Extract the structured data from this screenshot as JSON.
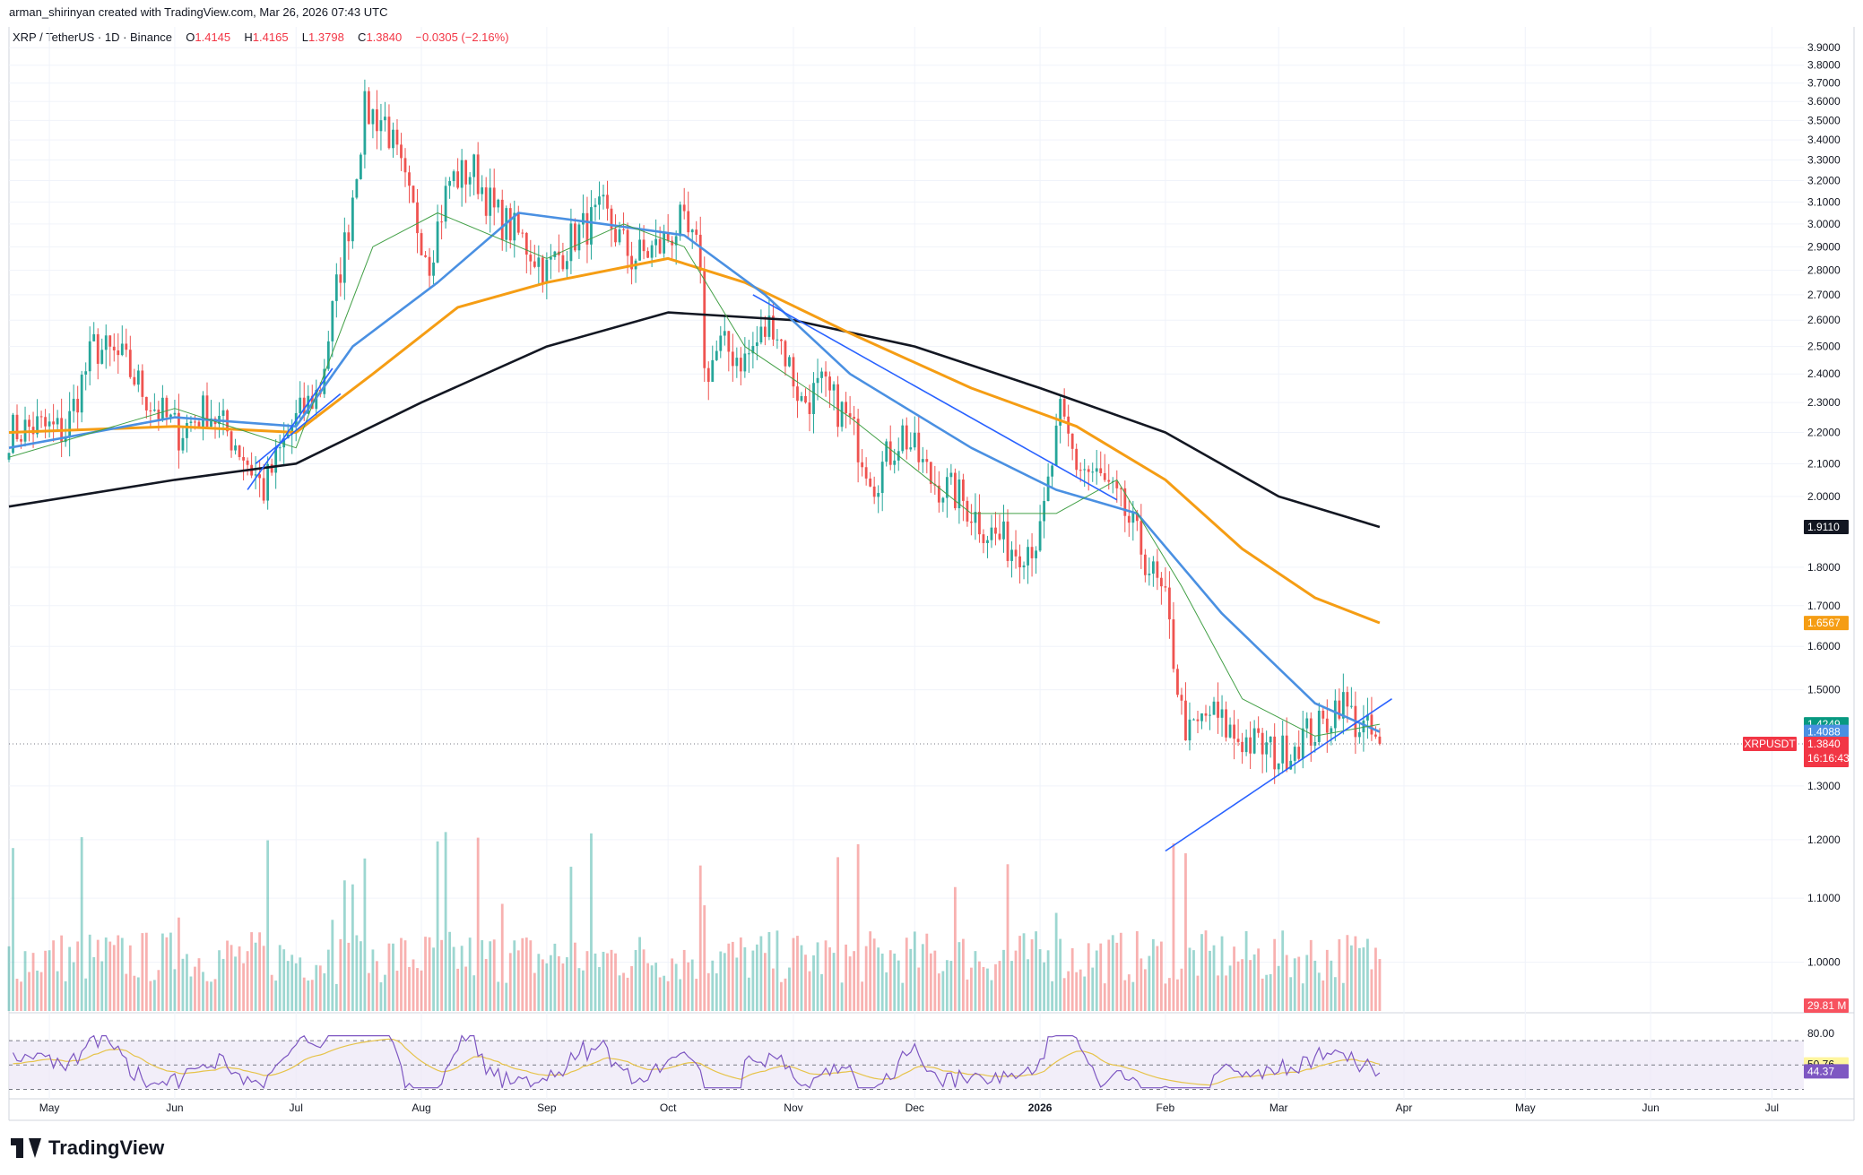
{
  "header": {
    "attribution": "arman_shirinyan created with TradingView.com, Mar 26, 2026 07:43 UTC"
  },
  "legend": {
    "symbol": "XRP / TetherUS · 1D · Binance",
    "open_label": "O",
    "open": "1.4145",
    "high_label": "H",
    "high": "1.4165",
    "low_label": "L",
    "low": "1.3798",
    "close_label": "C",
    "close": "1.3840",
    "change": "−0.0305 (−2.16%)"
  },
  "brand": {
    "name": "TradingView",
    "logo_icon": "tradingview-logo-icon"
  },
  "colors": {
    "up": "#26a69a",
    "down": "#ef5350",
    "ma_fast": "#43a047",
    "ma_blue": "#4a90e2",
    "ma_orange": "#f59d14",
    "ma_black": "#131722",
    "trendline": "#2962ff",
    "rsi": "#7e57c2",
    "rsi_ma": "#e6c34a",
    "rsi_band": "#ede7f6"
  },
  "chart_data": {
    "type": "candlestick",
    "symbol": "XRPUSDT",
    "y_axis": {
      "ticks": [
        "3.9000",
        "3.8000",
        "3.7000",
        "3.6000",
        "3.5000",
        "3.4000",
        "3.3000",
        "3.2000",
        "3.1000",
        "3.0000",
        "2.9000",
        "2.8000",
        "2.7000",
        "2.6000",
        "2.5000",
        "2.4000",
        "2.3000",
        "2.2000",
        "2.1000",
        "2.0000",
        "1.8000",
        "1.7000",
        "1.6000",
        "1.5000",
        "1.3000",
        "1.2000",
        "1.1000",
        "1.0000"
      ],
      "scale": "log",
      "ylim": [
        0.93,
        3.98
      ]
    },
    "x_axis": {
      "months": [
        "May",
        "Jun",
        "Jul",
        "Aug",
        "Sep",
        "Oct",
        "Nov",
        "Dec",
        "2026",
        "Feb",
        "Mar",
        "Apr",
        "May",
        "Jun",
        "Jul"
      ],
      "month_starts": [
        "2025-05-01",
        "2025-06-01",
        "2025-07-01",
        "2025-08-01",
        "2025-09-01",
        "2025-10-01",
        "2025-11-01",
        "2025-12-01",
        "2026-01-01",
        "2026-02-01",
        "2026-03-01",
        "2026-04-01",
        "2026-05-01",
        "2026-06-01",
        "2026-07-01"
      ],
      "range": [
        "2025-04-21",
        "2026-07-08"
      ]
    },
    "price_path": [
      [
        "2025-04-21",
        2.2
      ],
      [
        "2025-04-28",
        2.22
      ],
      [
        "2025-05-05",
        2.2
      ],
      [
        "2025-05-12",
        2.5
      ],
      [
        "2025-05-19",
        2.45
      ],
      [
        "2025-05-26",
        2.3
      ],
      [
        "2025-06-02",
        2.2
      ],
      [
        "2025-06-09",
        2.28
      ],
      [
        "2025-06-16",
        2.17
      ],
      [
        "2025-06-23",
        2.02
      ],
      [
        "2025-06-30",
        2.22
      ],
      [
        "2025-07-07",
        2.35
      ],
      [
        "2025-07-14",
        3.0
      ],
      [
        "2025-07-18",
        3.55
      ],
      [
        "2025-07-23",
        3.5
      ],
      [
        "2025-07-29",
        3.1
      ],
      [
        "2025-08-03",
        2.85
      ],
      [
        "2025-08-08",
        3.2
      ],
      [
        "2025-08-14",
        3.25
      ],
      [
        "2025-08-19",
        3.05
      ],
      [
        "2025-08-25",
        2.95
      ],
      [
        "2025-09-01",
        2.8
      ],
      [
        "2025-09-08",
        2.95
      ],
      [
        "2025-09-15",
        3.05
      ],
      [
        "2025-09-22",
        2.85
      ],
      [
        "2025-09-29",
        2.9
      ],
      [
        "2025-10-04",
        3.0
      ],
      [
        "2025-10-09",
        2.85
      ],
      [
        "2025-10-10",
        2.4
      ],
      [
        "2025-10-14",
        2.5
      ],
      [
        "2025-10-20",
        2.45
      ],
      [
        "2025-10-27",
        2.6
      ],
      [
        "2025-11-03",
        2.3
      ],
      [
        "2025-11-08",
        2.35
      ],
      [
        "2025-11-14",
        2.25
      ],
      [
        "2025-11-21",
        2.05
      ],
      [
        "2025-11-28",
        2.2
      ],
      [
        "2025-12-05",
        2.05
      ],
      [
        "2025-12-12",
        2.0
      ],
      [
        "2025-12-19",
        1.9
      ],
      [
        "2025-12-26",
        1.85
      ],
      [
        "2026-01-01",
        1.88
      ],
      [
        "2026-01-06",
        2.25
      ],
      [
        "2026-01-10",
        2.1
      ],
      [
        "2026-01-16",
        2.05
      ],
      [
        "2026-01-22",
        1.95
      ],
      [
        "2026-01-28",
        1.8
      ],
      [
        "2026-02-01",
        1.7
      ],
      [
        "2026-02-05",
        1.45
      ],
      [
        "2026-02-07",
        1.4
      ],
      [
        "2026-02-12",
        1.45
      ],
      [
        "2026-02-18",
        1.4
      ],
      [
        "2026-02-24",
        1.38
      ],
      [
        "2026-03-01",
        1.36
      ],
      [
        "2026-03-07",
        1.4
      ],
      [
        "2026-03-12",
        1.42
      ],
      [
        "2026-03-16",
        1.48
      ],
      [
        "2026-03-20",
        1.43
      ],
      [
        "2026-03-26",
        1.384
      ]
    ],
    "series": [
      {
        "name": "",
        "color_key": "ma_black",
        "points": [
          [
            "2025-04-21",
            1.97
          ],
          [
            "2025-06-01",
            2.05
          ],
          [
            "2025-07-01",
            2.1
          ],
          [
            "2025-08-01",
            2.3
          ],
          [
            "2025-09-01",
            2.5
          ],
          [
            "2025-10-01",
            2.63
          ],
          [
            "2025-11-01",
            2.6
          ],
          [
            "2025-12-01",
            2.5
          ],
          [
            "2026-01-01",
            2.35
          ],
          [
            "2026-02-01",
            2.2
          ],
          [
            "2026-03-01",
            2.0
          ],
          [
            "2026-03-26",
            1.911
          ]
        ]
      },
      {
        "name": "",
        "color_key": "ma_orange",
        "points": [
          [
            "2025-04-21",
            2.2
          ],
          [
            "2025-06-01",
            2.22
          ],
          [
            "2025-07-01",
            2.2
          ],
          [
            "2025-07-20",
            2.4
          ],
          [
            "2025-08-10",
            2.65
          ],
          [
            "2025-09-01",
            2.75
          ],
          [
            "2025-10-01",
            2.85
          ],
          [
            "2025-10-20",
            2.75
          ],
          [
            "2025-11-15",
            2.55
          ],
          [
            "2025-12-15",
            2.35
          ],
          [
            "2026-01-10",
            2.22
          ],
          [
            "2026-02-01",
            2.05
          ],
          [
            "2026-02-20",
            1.85
          ],
          [
            "2026-03-10",
            1.72
          ],
          [
            "2026-03-26",
            1.657
          ]
        ]
      },
      {
        "name": "",
        "color_key": "ma_blue",
        "points": [
          [
            "2025-04-21",
            2.15
          ],
          [
            "2025-06-01",
            2.25
          ],
          [
            "2025-07-01",
            2.22
          ],
          [
            "2025-07-15",
            2.5
          ],
          [
            "2025-08-05",
            2.75
          ],
          [
            "2025-08-25",
            3.05
          ],
          [
            "2025-09-15",
            3.0
          ],
          [
            "2025-10-05",
            2.95
          ],
          [
            "2025-10-25",
            2.7
          ],
          [
            "2025-11-15",
            2.4
          ],
          [
            "2025-12-15",
            2.15
          ],
          [
            "2026-01-05",
            2.02
          ],
          [
            "2026-01-25",
            1.95
          ],
          [
            "2026-02-15",
            1.68
          ],
          [
            "2026-03-10",
            1.47
          ],
          [
            "2026-03-26",
            1.409
          ]
        ]
      },
      {
        "name": "",
        "color_key": "ma_fast",
        "points": [
          [
            "2025-04-21",
            2.12
          ],
          [
            "2025-06-01",
            2.28
          ],
          [
            "2025-07-01",
            2.15
          ],
          [
            "2025-07-20",
            2.9
          ],
          [
            "2025-08-05",
            3.05
          ],
          [
            "2025-09-01",
            2.85
          ],
          [
            "2025-09-20",
            3.0
          ],
          [
            "2025-10-05",
            2.9
          ],
          [
            "2025-10-20",
            2.5
          ],
          [
            "2025-11-15",
            2.25
          ],
          [
            "2025-12-15",
            1.95
          ],
          [
            "2026-01-05",
            1.95
          ],
          [
            "2026-01-20",
            2.05
          ],
          [
            "2026-02-05",
            1.75
          ],
          [
            "2026-02-20",
            1.48
          ],
          [
            "2026-03-10",
            1.4
          ],
          [
            "2026-03-26",
            1.425
          ]
        ]
      }
    ],
    "trendlines": [
      [
        [
          "2025-06-19",
          2.02
        ],
        [
          "2025-07-10",
          2.42
        ]
      ],
      [
        [
          "2025-06-21",
          2.1
        ],
        [
          "2025-07-12",
          2.33
        ]
      ],
      [
        [
          "2025-10-22",
          2.7
        ],
        [
          "2026-01-20",
          1.99
        ]
      ],
      [
        [
          "2026-02-01",
          1.18
        ],
        [
          "2026-03-29",
          1.48
        ]
      ]
    ],
    "volume_max": 29.81,
    "rsi": {
      "hlines": [
        80,
        50,
        20
      ],
      "ylim": [
        15,
        90
      ]
    },
    "last_values": {
      "ma_black": "1.9110",
      "ma_orange": "1.6567",
      "ma_fast": "1.4249",
      "ma_blue": "1.4088",
      "price": "1.3840",
      "symbol": "XRPUSDT",
      "countdown": "16:16:43",
      "volume": "29.81 M",
      "rsi_ma": "50.76",
      "rsi": "44.37",
      "rsi_level": "80.00"
    }
  }
}
